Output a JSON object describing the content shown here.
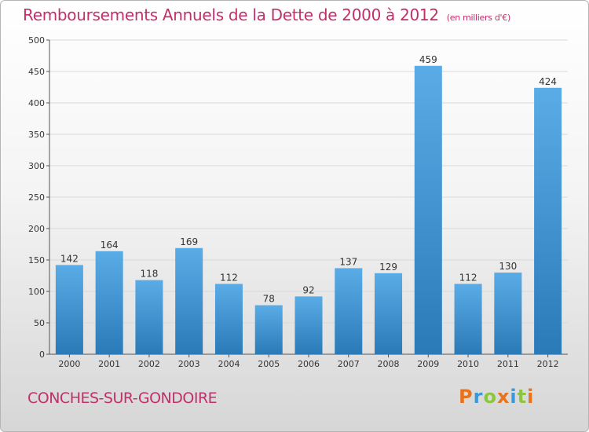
{
  "title": "Remboursements Annuels de la Dette de 2000 à 2012",
  "subtitle": "(en milliers d'€)",
  "commune": "CONCHES-SUR-GONDOIRE",
  "logo": {
    "text": "Proxiti",
    "letters": [
      {
        "ch": "P",
        "color": "#e8731c"
      },
      {
        "ch": "r",
        "color": "#3a9ad9"
      },
      {
        "ch": "o",
        "color": "#8cc63f"
      },
      {
        "ch": "x",
        "color": "#e8731c"
      },
      {
        "ch": "i",
        "color": "#3a9ad9"
      },
      {
        "ch": "t",
        "color": "#8cc63f"
      },
      {
        "ch": "i",
        "color": "#e8731c"
      }
    ]
  },
  "colors": {
    "title": "#c0306a",
    "bar_top": "#5aace6",
    "bar_bottom": "#2a7ab8",
    "grid": "#d9d9d9"
  },
  "chart_data": {
    "type": "bar",
    "categories": [
      "2000",
      "2001",
      "2002",
      "2003",
      "2004",
      "2005",
      "2006",
      "2007",
      "2008",
      "2009",
      "2010",
      "2011",
      "2012"
    ],
    "values": [
      142,
      164,
      118,
      169,
      112,
      78,
      92,
      137,
      129,
      459,
      112,
      130,
      424
    ],
    "ylim": [
      0,
      500
    ],
    "yticks": [
      0,
      50,
      100,
      150,
      200,
      250,
      300,
      350,
      400,
      450,
      500
    ],
    "grid": true,
    "data_labels": true
  }
}
